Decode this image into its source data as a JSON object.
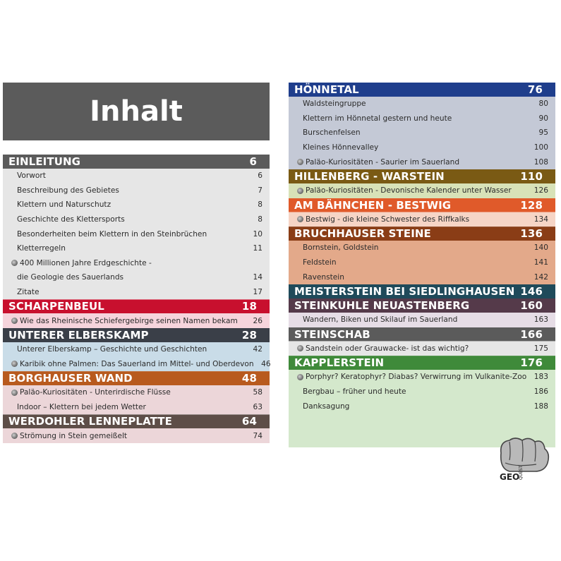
{
  "title": "Inhalt",
  "left_sections": [
    {
      "name": "EINLEITUNG",
      "page": "6",
      "head_color": "#5b5b5b",
      "bg": "#e6e6e6",
      "entries": [
        {
          "text": "Vorwort",
          "page": "6",
          "fossil": false
        },
        {
          "text": "Beschreibung des Gebietes",
          "page": "7",
          "fossil": false
        },
        {
          "text": "Klettern und Naturschutz",
          "page": "8",
          "fossil": false
        },
        {
          "text": "Geschichte des Klettersports",
          "page": "8",
          "fossil": false
        },
        {
          "text": "Besonderheiten beim Klettern in den Steinbrüchen",
          "page": "10",
          "fossil": false
        },
        {
          "text": "Kletterregeln",
          "page": "11",
          "fossil": false
        },
        {
          "text": "400 Millionen Jahre Erdgeschichte -",
          "page": "",
          "fossil": true
        },
        {
          "text": "die Geologie des Sauerlands",
          "page": "14",
          "fossil": false
        },
        {
          "text": "Zitate",
          "page": "17",
          "fossil": false
        }
      ]
    },
    {
      "name": "SCHARPENBEUL",
      "page": "18",
      "head_color": "#c8102e",
      "bg": "#f6d4dc",
      "entries": [
        {
          "text": "Wie das Rheinische Schiefergebirge seinen Namen bekam",
          "page": "26",
          "fossil": true
        }
      ]
    },
    {
      "name": "UNTERER ELBERSKAMP",
      "page": "28",
      "head_color": "#3a3f48",
      "bg": "#c9dce8",
      "entries": [
        {
          "text": "Unterer Elberskamp – Geschichte und Geschichten",
          "page": "42",
          "fossil": false
        },
        {
          "text": "Karibik ohne Palmen: Das Sauerland im Mittel- und Oberdevon",
          "page": "46",
          "fossil": true
        }
      ]
    },
    {
      "name": "BORGHAUSER WAND",
      "page": "48",
      "head_color": "#b85a1e",
      "bg": "#ecd6d9",
      "entries": [
        {
          "text": "Paläo-Kuriositäten - Unterirdische Flüsse",
          "page": "58",
          "fossil": true
        },
        {
          "text": "Indoor – Klettern bei jedem Wetter",
          "page": "63",
          "fossil": false
        }
      ]
    },
    {
      "name": "WERDOHLER LENNEPLATTE",
      "page": "64",
      "head_color": "#5e4e48",
      "bg": "#ecd6d9",
      "entries": [
        {
          "text": "Strömung in Stein gemeißelt",
          "page": "74",
          "fossil": true
        }
      ]
    }
  ],
  "right_sections": [
    {
      "name": "HÖNNETAL",
      "page": "76",
      "head_color": "#1f3e8c",
      "bg": "#c4c9d6",
      "entries": [
        {
          "text": "Waldsteingruppe",
          "page": "80",
          "fossil": false
        },
        {
          "text": "Klettern im Hönnetal gestern und heute",
          "page": "90",
          "fossil": false
        },
        {
          "text": "Burschenfelsen",
          "page": "95",
          "fossil": false
        },
        {
          "text": "Kleines Hönnevalley",
          "page": "100",
          "fossil": false
        },
        {
          "text": "Paläo-Kuriositäten - Saurier im Sauerland",
          "page": "108",
          "fossil": true
        }
      ]
    },
    {
      "name": "HILLENBERG - WARSTEIN",
      "page": "110",
      "head_color": "#7a5a14",
      "bg": "#d8e2b8",
      "entries": [
        {
          "text": "Paläo-Kuriositäten - Devonische Kalender unter Wasser",
          "page": "126",
          "fossil": true
        }
      ]
    },
    {
      "name": "AM BÄHNCHEN - BESTWIG",
      "page": "128",
      "head_color": "#e05a2a",
      "bg": "#f6d5c6",
      "entries": [
        {
          "text": "Bestwig - die kleine Schwester des Riffkalks",
          "page": "134",
          "fossil": true
        }
      ]
    },
    {
      "name": "BRUCHHAUSER STEINE",
      "page": "136",
      "head_color": "#8a3d16",
      "bg": "#e3a98a",
      "entries": [
        {
          "text": "Bornstein, Goldstein",
          "page": "140",
          "fossil": false
        },
        {
          "text": "Feldstein",
          "page": "141",
          "fossil": false
        },
        {
          "text": "Ravenstein",
          "page": "142",
          "fossil": false
        }
      ]
    },
    {
      "name": "MEISTERSTEIN BEI SIEDLINGHAUSEN",
      "page": "146",
      "head_color": "#1f4a5a",
      "bg": "#c9dce8",
      "entries": []
    },
    {
      "name": "STEINKUHLE NEUASTENBERG",
      "page": "160",
      "head_color": "#553a4a",
      "bg": "#e6dde6",
      "entries": [
        {
          "text": "Wandern, Biken und Skilauf im Sauerland",
          "page": "163",
          "fossil": false
        }
      ]
    },
    {
      "name": "STEINSCHAB",
      "page": "166",
      "head_color": "#5b5b5b",
      "bg": "#e6e6e6",
      "entries": [
        {
          "text": "Sandstein oder Grauwacke- ist das wichtig?",
          "page": "175",
          "fossil": true
        }
      ]
    },
    {
      "name": "KAPPLERSTEIN",
      "page": "176",
      "head_color": "#3f8a3a",
      "bg": "#d4e8cc",
      "entries": [
        {
          "text": "Porphyr? Keratophyr? Diabas? Verwirrung im Vulkanite-Zoo",
          "page": "183",
          "fossil": true
        },
        {
          "text": "Bergbau – früher und heute",
          "page": "186",
          "fossil": false
        },
        {
          "text": "Danksagung",
          "page": "188",
          "fossil": false
        }
      ]
    }
  ],
  "logo": {
    "text": "GEO",
    "sub": "QUEST"
  }
}
